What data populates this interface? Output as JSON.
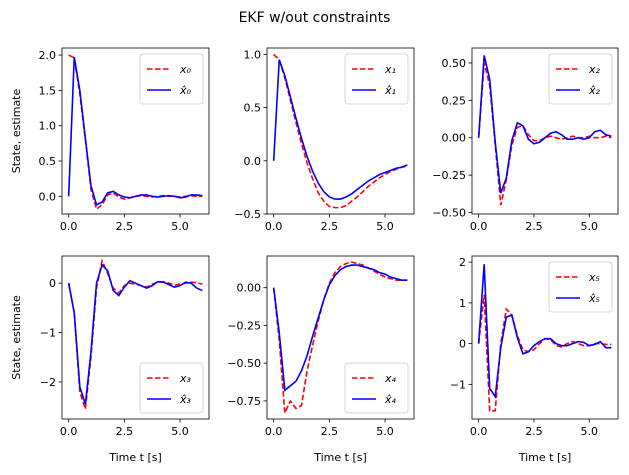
{
  "chart_data": {
    "type": "line",
    "title": "EKF w/out constraints",
    "ylabel": "State, estimate",
    "xlabel": "Time t [s]",
    "x": [
      0,
      0.25,
      0.5,
      0.75,
      1.0,
      1.25,
      1.5,
      1.75,
      2.0,
      2.25,
      2.5,
      2.75,
      3.0,
      3.25,
      3.5,
      3.75,
      4.0,
      4.25,
      4.5,
      4.75,
      5.0,
      5.25,
      5.5,
      5.75,
      6.0
    ],
    "panels": [
      {
        "state_label": "x₀",
        "estimate_label": "x̂₀",
        "legend": "top-right",
        "ylim": [
          -0.25,
          2.1
        ],
        "yticks": [
          0.0,
          0.5,
          1.0,
          1.5,
          2.0
        ],
        "ytick_labels": [
          "0.0",
          "0.5",
          "1.0",
          "1.5",
          "2.0"
        ],
        "xlim": [
          -0.3,
          6.3
        ],
        "xticks": [
          0.0,
          2.5,
          5.0
        ],
        "xtick_labels": [
          "0.0",
          "2.5",
          "5.0"
        ],
        "state": [
          2.0,
          1.96,
          1.45,
          0.8,
          0.1,
          -0.18,
          -0.12,
          0.02,
          0.05,
          -0.01,
          -0.04,
          -0.02,
          0.0,
          0.01,
          0.0,
          -0.01,
          0.0,
          0.01,
          0.0,
          0.0,
          -0.01,
          0.0,
          0.01,
          0.0,
          0.0
        ],
        "estimate": [
          0.0,
          1.97,
          1.5,
          0.82,
          0.15,
          -0.12,
          -0.08,
          0.05,
          0.07,
          0.02,
          -0.01,
          -0.02,
          0.0,
          0.02,
          0.02,
          0.0,
          -0.01,
          0.0,
          0.01,
          0.0,
          -0.02,
          -0.01,
          0.02,
          0.02,
          0.01
        ]
      },
      {
        "state_label": "x₁",
        "estimate_label": "x̂₁",
        "legend": "top-right",
        "ylim": [
          -0.5,
          1.06
        ],
        "yticks": [
          -0.5,
          0.0,
          0.5,
          1.0
        ],
        "ytick_labels": [
          "−0.5",
          "0.0",
          "0.5",
          "1.0"
        ],
        "xlim": [
          -0.3,
          6.3
        ],
        "xticks": [
          0.0,
          2.5,
          5.0
        ],
        "xtick_labels": [
          "0.0",
          "2.5",
          "5.0"
        ],
        "state": [
          1.0,
          0.95,
          0.78,
          0.57,
          0.36,
          0.16,
          -0.02,
          -0.17,
          -0.3,
          -0.38,
          -0.43,
          -0.44,
          -0.44,
          -0.42,
          -0.38,
          -0.34,
          -0.29,
          -0.24,
          -0.2,
          -0.16,
          -0.13,
          -0.1,
          -0.08,
          -0.06,
          -0.05
        ],
        "estimate": [
          0.0,
          0.95,
          0.8,
          0.6,
          0.4,
          0.21,
          0.04,
          -0.1,
          -0.21,
          -0.29,
          -0.34,
          -0.36,
          -0.36,
          -0.34,
          -0.31,
          -0.27,
          -0.23,
          -0.19,
          -0.16,
          -0.13,
          -0.11,
          -0.09,
          -0.07,
          -0.06,
          -0.04
        ]
      },
      {
        "state_label": "x₂",
        "estimate_label": "x̂₂",
        "legend": "top-right",
        "ylim": [
          -0.51,
          0.6
        ],
        "yticks": [
          -0.5,
          -0.25,
          0.0,
          0.25,
          0.5
        ],
        "ytick_labels": [
          "−0.50",
          "−0.25",
          "0.00",
          "0.25",
          "0.50"
        ],
        "xlim": [
          -0.3,
          6.3
        ],
        "xticks": [
          0.0,
          2.5,
          5.0
        ],
        "xtick_labels": [
          "0.0",
          "2.5",
          "5.0"
        ],
        "state": [
          0.0,
          0.5,
          0.35,
          -0.05,
          -0.45,
          -0.28,
          -0.05,
          0.07,
          0.08,
          0.02,
          -0.02,
          -0.02,
          0.0,
          0.01,
          0.0,
          -0.01,
          0.0,
          0.01,
          0.0,
          0.0,
          0.01,
          0.0,
          0.0,
          0.01,
          0.0
        ],
        "estimate": [
          0.0,
          0.55,
          0.39,
          -0.03,
          -0.37,
          -0.27,
          -0.02,
          0.1,
          0.08,
          -0.01,
          -0.04,
          -0.03,
          0.0,
          0.03,
          0.04,
          0.02,
          -0.01,
          -0.01,
          0.0,
          -0.01,
          0.0,
          0.04,
          0.05,
          0.02,
          0.01
        ]
      },
      {
        "state_label": "x₃",
        "estimate_label": "x̂₃",
        "legend": "bottom-right",
        "ylim": [
          -2.75,
          0.55
        ],
        "yticks": [
          -2.0,
          -1.0,
          0.0
        ],
        "ytick_labels": [
          "−2",
          "−1",
          "0"
        ],
        "xlim": [
          -0.3,
          6.3
        ],
        "xticks": [
          0.0,
          2.5,
          5.0
        ],
        "xtick_labels": [
          "0.0",
          "2.5",
          "5.0"
        ],
        "state": [
          0.0,
          -0.6,
          -2.2,
          -2.55,
          -1.5,
          -0.1,
          0.45,
          0.2,
          -0.1,
          -0.2,
          -0.05,
          0.0,
          -0.02,
          -0.05,
          -0.08,
          -0.02,
          0.02,
          0.03,
          0.0,
          -0.04,
          -0.02,
          0.0,
          0.02,
          0.01,
          -0.02
        ],
        "estimate": [
          0.0,
          -0.6,
          -2.1,
          -2.45,
          -1.4,
          0.0,
          0.37,
          0.25,
          -0.15,
          -0.25,
          -0.08,
          0.05,
          0.0,
          -0.05,
          -0.1,
          -0.05,
          0.03,
          0.02,
          -0.03,
          -0.08,
          -0.05,
          0.02,
          0.0,
          -0.1,
          -0.15
        ]
      },
      {
        "state_label": "x₄",
        "estimate_label": "x̂₄",
        "legend": "bottom-right",
        "ylim": [
          -0.87,
          0.21
        ],
        "yticks": [
          -0.75,
          -0.5,
          -0.25,
          0.0
        ],
        "ytick_labels": [
          "−0.75",
          "−0.50",
          "−0.25",
          "0.00"
        ],
        "xlim": [
          -0.3,
          6.3
        ],
        "xticks": [
          0.0,
          2.5,
          5.0
        ],
        "xtick_labels": [
          "0.0",
          "2.5",
          "5.0"
        ],
        "state": [
          0.0,
          -0.35,
          -0.83,
          -0.75,
          -0.8,
          -0.78,
          -0.55,
          -0.38,
          -0.22,
          -0.08,
          0.03,
          0.1,
          0.14,
          0.16,
          0.17,
          0.16,
          0.15,
          0.13,
          0.11,
          0.09,
          0.07,
          0.06,
          0.05,
          0.05,
          0.05
        ],
        "estimate": [
          0.0,
          -0.3,
          -0.68,
          -0.65,
          -0.62,
          -0.55,
          -0.45,
          -0.32,
          -0.2,
          -0.08,
          0.02,
          0.08,
          0.12,
          0.14,
          0.15,
          0.15,
          0.14,
          0.13,
          0.12,
          0.1,
          0.09,
          0.07,
          0.06,
          0.05,
          0.05
        ]
      },
      {
        "state_label": "x₅",
        "estimate_label": "x̂₅",
        "legend": "top-right",
        "ylim": [
          -1.85,
          2.15
        ],
        "yticks": [
          -1.0,
          0.0,
          1.0,
          2.0
        ],
        "ytick_labels": [
          "−1",
          "0",
          "1",
          "2"
        ],
        "xlim": [
          -0.3,
          6.3
        ],
        "xticks": [
          0.0,
          2.5,
          5.0
        ],
        "xtick_labels": [
          "0.0",
          "2.5",
          "5.0"
        ],
        "state": [
          0.0,
          1.2,
          -1.65,
          -1.65,
          0.0,
          0.85,
          0.7,
          0.2,
          -0.15,
          -0.2,
          -0.15,
          0.0,
          0.12,
          0.1,
          -0.05,
          -0.08,
          0.0,
          0.05,
          0.0,
          -0.05,
          -0.05,
          0.0,
          0.0,
          -0.02,
          -0.02
        ],
        "estimate": [
          0.0,
          1.95,
          -1.1,
          -1.3,
          -0.1,
          0.65,
          0.7,
          0.15,
          -0.25,
          -0.2,
          -0.05,
          0.05,
          0.12,
          0.12,
          0.0,
          -0.05,
          -0.05,
          0.0,
          0.05,
          0.03,
          -0.05,
          -0.02,
          0.05,
          -0.1,
          -0.1
        ]
      }
    ]
  },
  "colors": {
    "state": "#ff0000",
    "estimate": "#0000ff"
  }
}
